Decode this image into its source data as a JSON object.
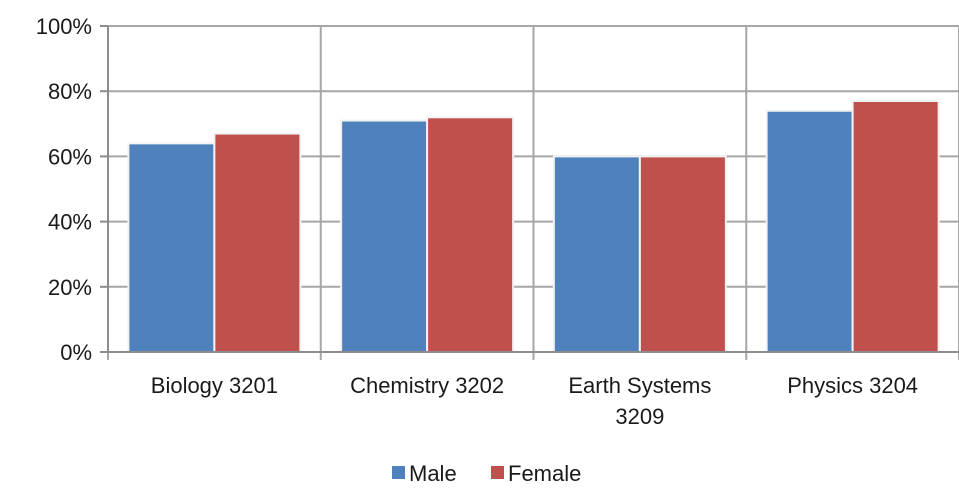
{
  "chart_data": {
    "type": "bar",
    "categories": [
      "Biology 3201",
      "Chemistry 3202",
      "Earth Systems 3209",
      "Physics 3204"
    ],
    "category_lines": [
      [
        "Biology 3201"
      ],
      [
        "Chemistry 3202"
      ],
      [
        "Earth Systems",
        "3209"
      ],
      [
        "Physics 3204"
      ]
    ],
    "series": [
      {
        "name": "Male",
        "values": [
          64,
          71,
          60,
          74
        ],
        "color": "#4f81bd"
      },
      {
        "name": "Female",
        "values": [
          67,
          72,
          60,
          77
        ],
        "color": "#c0504d"
      }
    ],
    "y_ticks": [
      "0%",
      "20%",
      "40%",
      "60%",
      "80%",
      "100%"
    ],
    "ylim": [
      0,
      100
    ],
    "y_unit": "%",
    "grid": true,
    "legend": "bottom",
    "title": "",
    "xlabel": "",
    "ylabel": ""
  }
}
